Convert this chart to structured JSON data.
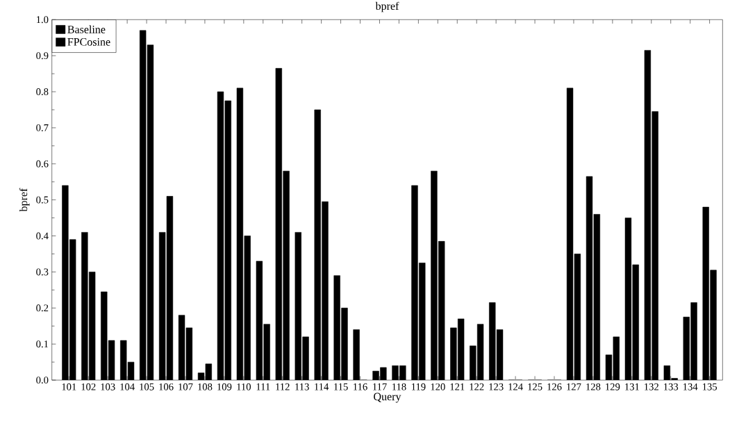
{
  "chart_data": {
    "type": "bar",
    "title": "bpref",
    "xlabel": "Query",
    "ylabel": "bpref",
    "categories": [
      "101",
      "102",
      "103",
      "104",
      "105",
      "106",
      "107",
      "108",
      "109",
      "110",
      "111",
      "112",
      "113",
      "114",
      "115",
      "116",
      "117",
      "118",
      "119",
      "120",
      "121",
      "122",
      "123",
      "124",
      "125",
      "126",
      "127",
      "128",
      "129",
      "131",
      "132",
      "133",
      "134",
      "135"
    ],
    "series": [
      {
        "name": "Baseline",
        "color": "#000000",
        "values": [
          0.54,
          0.41,
          0.245,
          0.11,
          0.97,
          0.41,
          0.18,
          0.02,
          0.8,
          0.81,
          0.33,
          0.865,
          0.41,
          0.75,
          0.29,
          0.14,
          0.025,
          0.04,
          0.54,
          0.58,
          0.145,
          0.095,
          0.215,
          0,
          0,
          0,
          0.81,
          0.565,
          0.07,
          0.45,
          0.915,
          0.04,
          0.175,
          0.48
        ]
      },
      {
        "name": "FPCosine",
        "color": "#000000",
        "values": [
          0.39,
          0.3,
          0.11,
          0.05,
          0.93,
          0.51,
          0.145,
          0.045,
          0.775,
          0.4,
          0.155,
          0.58,
          0.12,
          0.495,
          0.2,
          0,
          0.035,
          0.04,
          0.325,
          0.385,
          0.17,
          0.155,
          0.14,
          0,
          0,
          0,
          0.35,
          0.46,
          0.12,
          0.32,
          0.745,
          0.005,
          0.215,
          0.305
        ]
      }
    ],
    "ylim": [
      0,
      1
    ],
    "yticks": [
      {
        "value": 0,
        "label": "0.0"
      },
      {
        "value": 0.1,
        "label": "0.1"
      },
      {
        "value": 0.2,
        "label": "0.2"
      },
      {
        "value": 0.3,
        "label": "0.3"
      },
      {
        "value": 0.4,
        "label": "0.4"
      },
      {
        "value": 0.5,
        "label": "0.5"
      },
      {
        "value": 0.6,
        "label": "0.6"
      },
      {
        "value": 0.7,
        "label": "0.7"
      },
      {
        "value": 0.8,
        "label": "0.8"
      },
      {
        "value": 0.9,
        "label": "0.9"
      },
      {
        "value": 1,
        "label": "1.0"
      }
    ],
    "legend": "top left",
    "grid": false
  }
}
